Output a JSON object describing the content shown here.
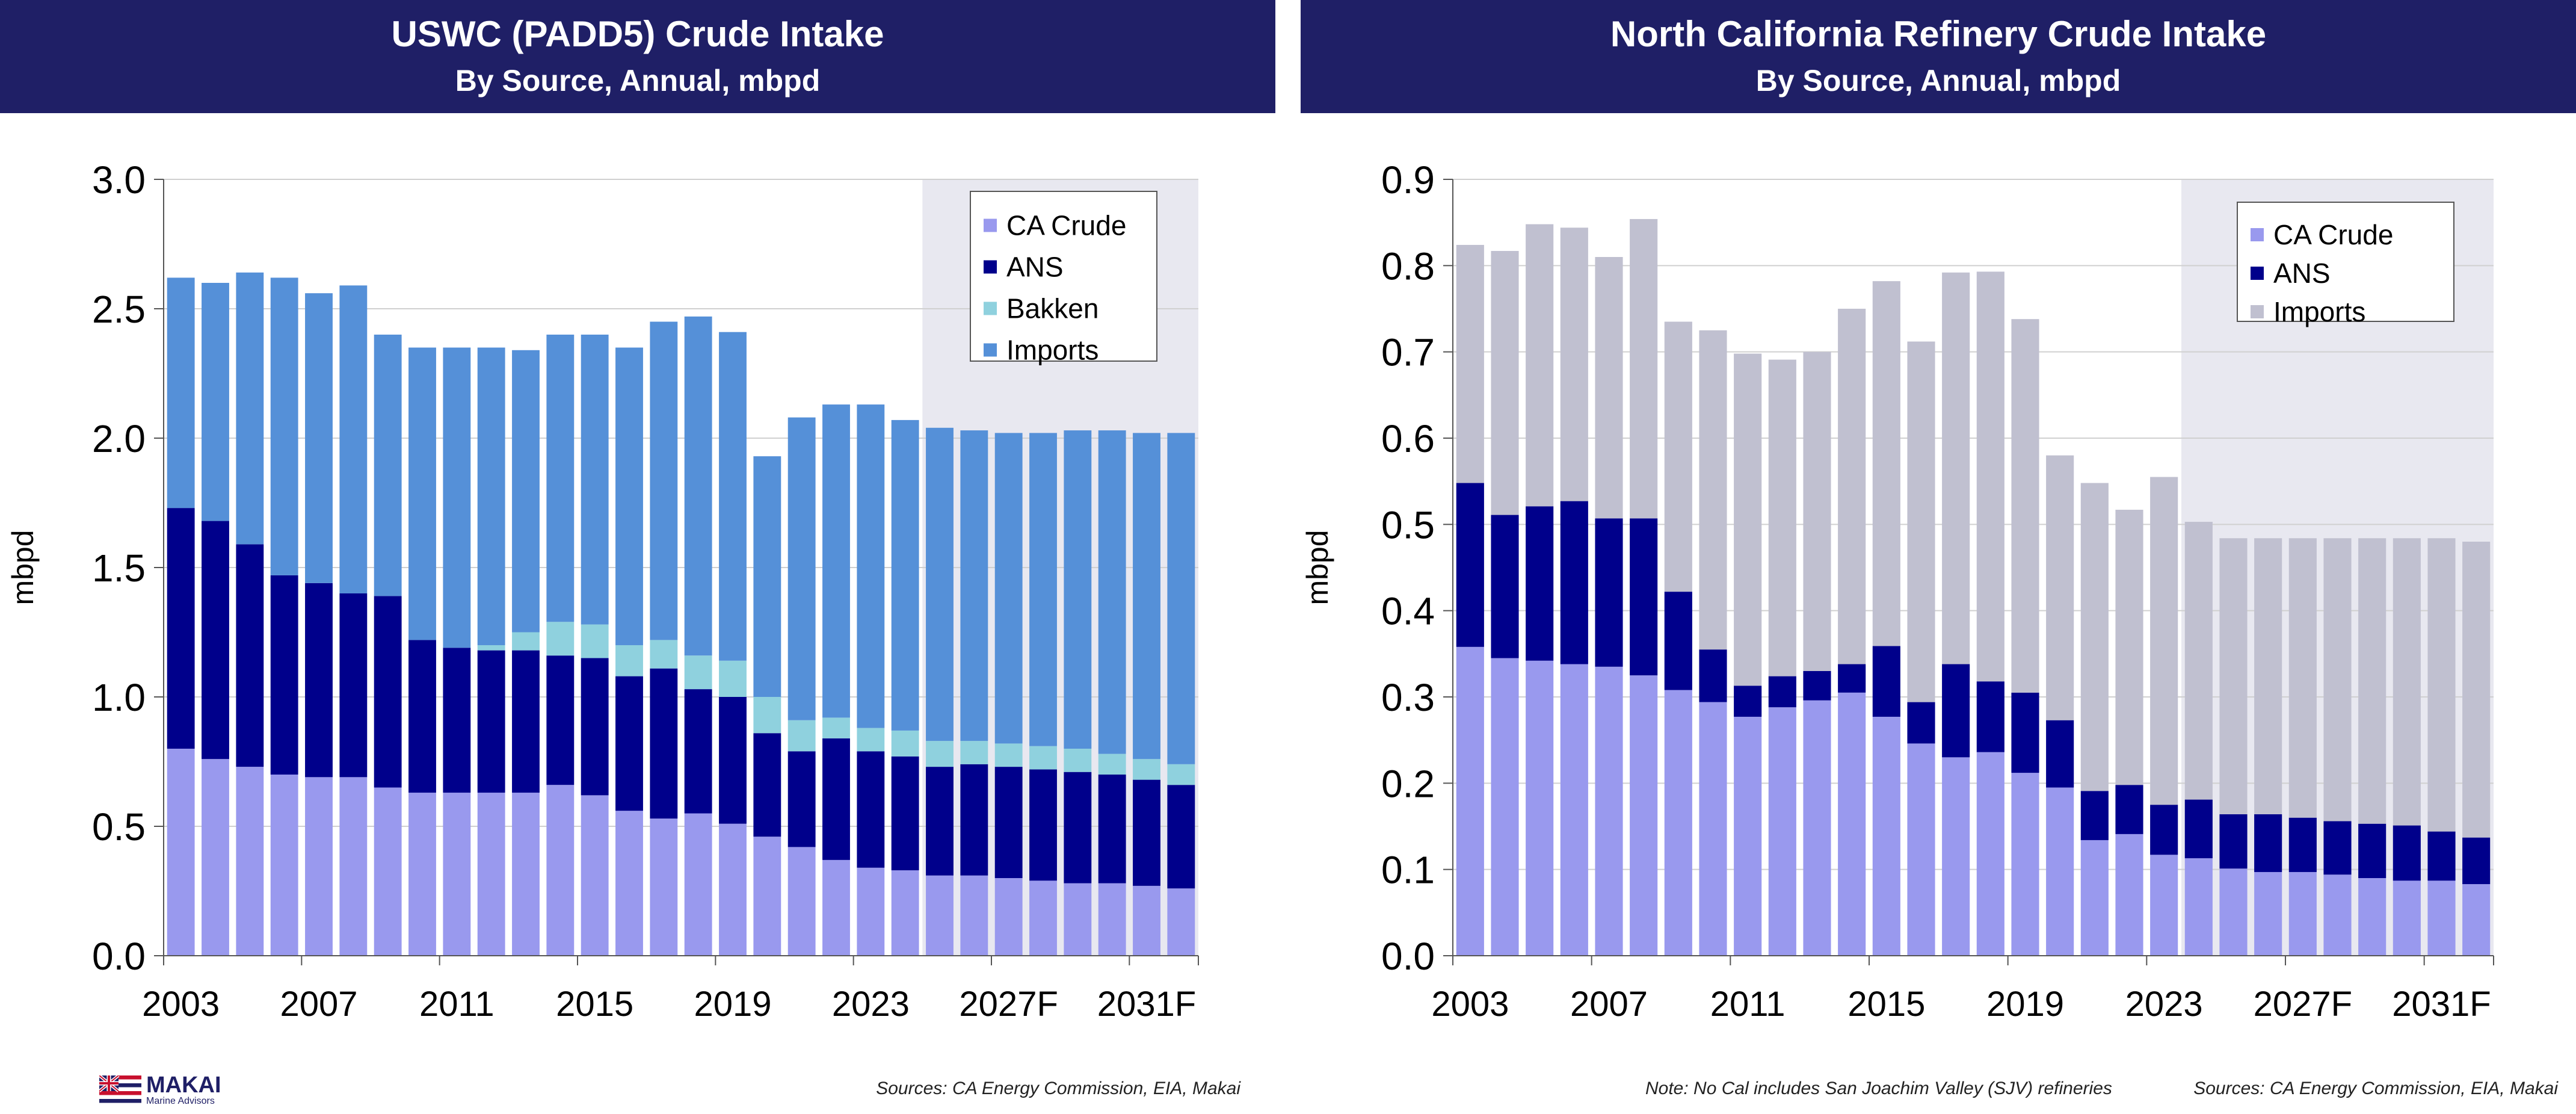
{
  "panels": [
    {
      "title": "USWC (PADD5) Crude Intake",
      "subtitle": "By Source, Annual, mbpd",
      "source": "Sources: CA Energy Commission, EIA, Makai"
    },
    {
      "title": "North California Refinery Crude Intake",
      "subtitle": "By Source, Annual, mbpd",
      "note": "Note: No Cal includes San Joachim Valley (SJV) refineries",
      "source": "Sources: CA Energy Commission, EIA, Makai"
    }
  ],
  "logo": {
    "name": "MAKAI",
    "subtitle": "Marine Advisors"
  },
  "chart_data": [
    {
      "type": "bar",
      "stacked": true,
      "title": "USWC (PADD5) Crude Intake",
      "subtitle": "By Source, Annual, mbpd",
      "ylabel": "mbpd",
      "ylim": [
        0,
        3.0
      ],
      "yticks": [
        "0.0",
        "0.5",
        "1.0",
        "1.5",
        "2.0",
        "2.5",
        "3.0"
      ],
      "categories": [
        "2003",
        "2004",
        "2005",
        "2006",
        "2007",
        "2008",
        "2009",
        "2010",
        "2011",
        "2012",
        "2013",
        "2014",
        "2015",
        "2016",
        "2017",
        "2018",
        "2019",
        "2020",
        "2021",
        "2022",
        "2023",
        "2024",
        "2025F",
        "2026F",
        "2027F",
        "2028F",
        "2029F",
        "2030F",
        "2031F",
        "2032F"
      ],
      "xtick_labels": [
        "2003",
        "2007",
        "2011",
        "2015",
        "2019",
        "2023",
        "2027F",
        "2031F"
      ],
      "forecast_start_index": 22,
      "forecast_shading": "#e8e8f0",
      "grid": true,
      "legend": "top-right",
      "series": [
        {
          "name": "CA Crude",
          "color": "#9999ee",
          "values": [
            0.8,
            0.76,
            0.73,
            0.7,
            0.69,
            0.69,
            0.65,
            0.63,
            0.63,
            0.63,
            0.63,
            0.66,
            0.62,
            0.56,
            0.53,
            0.55,
            0.51,
            0.46,
            0.42,
            0.37,
            0.34,
            0.33,
            0.31,
            0.31,
            0.3,
            0.29,
            0.28,
            0.28,
            0.27,
            0.26
          ]
        },
        {
          "name": "ANS",
          "color": "#00008b",
          "values": [
            0.93,
            0.92,
            0.86,
            0.77,
            0.75,
            0.71,
            0.74,
            0.59,
            0.56,
            0.55,
            0.55,
            0.5,
            0.53,
            0.52,
            0.58,
            0.48,
            0.49,
            0.4,
            0.37,
            0.47,
            0.45,
            0.44,
            0.42,
            0.43,
            0.43,
            0.43,
            0.43,
            0.42,
            0.41,
            0.4
          ]
        },
        {
          "name": "Bakken",
          "color": "#8fd1de",
          "values": [
            0,
            0,
            0,
            0,
            0,
            0,
            0,
            0,
            0,
            0.02,
            0.07,
            0.13,
            0.13,
            0.12,
            0.11,
            0.13,
            0.14,
            0.14,
            0.12,
            0.08,
            0.09,
            0.1,
            0.1,
            0.09,
            0.09,
            0.09,
            0.09,
            0.08,
            0.08,
            0.08
          ]
        },
        {
          "name": "Imports",
          "color": "#5590d8",
          "values": [
            0.89,
            0.92,
            1.05,
            1.15,
            1.12,
            1.19,
            1.01,
            1.13,
            1.16,
            1.15,
            1.09,
            1.11,
            1.12,
            1.15,
            1.23,
            1.31,
            1.27,
            0.93,
            1.17,
            1.21,
            1.25,
            1.2,
            1.21,
            1.2,
            1.2,
            1.21,
            1.23,
            1.25,
            1.26,
            1.28
          ]
        }
      ]
    },
    {
      "type": "bar",
      "stacked": true,
      "title": "North California Refinery Crude Intake",
      "subtitle": "By Source, Annual, mbpd",
      "ylabel": "mbpd",
      "ylim": [
        0,
        0.9
      ],
      "yticks": [
        "0.0",
        "0.1",
        "0.2",
        "0.3",
        "0.4",
        "0.5",
        "0.6",
        "0.7",
        "0.8",
        "0.9"
      ],
      "categories": [
        "2003",
        "2004",
        "2005",
        "2006",
        "2007",
        "2008",
        "2009",
        "2010",
        "2011",
        "2012",
        "2013",
        "2014",
        "2015",
        "2016",
        "2017",
        "2018",
        "2019",
        "2020",
        "2021",
        "2022",
        "2023",
        "2024",
        "2025F",
        "2026F",
        "2027F",
        "2028F",
        "2029F",
        "2030F",
        "2031F",
        "2032F"
      ],
      "xtick_labels": [
        "2003",
        "2007",
        "2011",
        "2015",
        "2019",
        "2023",
        "2027F",
        "2031F"
      ],
      "forecast_start_index": 21,
      "forecast_shading": "#e8e8f0",
      "grid": true,
      "legend": "top-right",
      "series": [
        {
          "name": "CA Crude",
          "color": "#9999ee",
          "values": [
            0.358,
            0.345,
            0.342,
            0.338,
            0.335,
            0.325,
            0.308,
            0.294,
            0.277,
            0.288,
            0.296,
            0.305,
            0.277,
            0.246,
            0.23,
            0.236,
            0.212,
            0.195,
            0.134,
            0.141,
            0.117,
            0.113,
            0.101,
            0.097,
            0.097,
            0.094,
            0.09,
            0.087,
            0.087,
            0.083
          ]
        },
        {
          "name": "ANS",
          "color": "#00008b",
          "values": [
            0.19,
            0.166,
            0.179,
            0.189,
            0.172,
            0.182,
            0.114,
            0.061,
            0.036,
            0.036,
            0.034,
            0.033,
            0.082,
            0.048,
            0.108,
            0.082,
            0.093,
            0.078,
            0.057,
            0.057,
            0.058,
            0.068,
            0.063,
            0.067,
            0.063,
            0.062,
            0.063,
            0.064,
            0.057,
            0.054
          ]
        },
        {
          "name": "Imports",
          "color": "#c0c0d0",
          "values": [
            0.276,
            0.306,
            0.327,
            0.317,
            0.303,
            0.347,
            0.313,
            0.37,
            0.385,
            0.367,
            0.37,
            0.412,
            0.423,
            0.418,
            0.454,
            0.475,
            0.433,
            0.307,
            0.357,
            0.319,
            0.38,
            0.322,
            0.32,
            0.32,
            0.324,
            0.328,
            0.331,
            0.333,
            0.34,
            0.343
          ]
        }
      ]
    }
  ]
}
